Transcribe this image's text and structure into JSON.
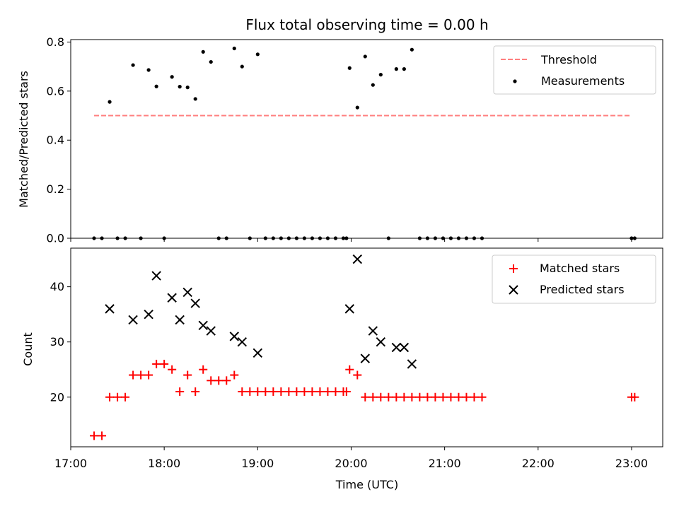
{
  "chart_data": [
    {
      "type": "scatter",
      "title": "Flux total observing time = 0.00 h",
      "xlabel": "",
      "ylabel": "Matched/Predicted stars",
      "xlim": [
        "17:00",
        "23:20"
      ],
      "ylim": [
        0,
        0.81
      ],
      "x_ticks": [
        "17:00",
        "18:00",
        "19:00",
        "20:00",
        "21:00",
        "22:00",
        "23:00"
      ],
      "x_tick_labels_visible": false,
      "y_ticks": [
        "0.0",
        "0.2",
        "0.4",
        "0.6",
        "0.8"
      ],
      "grid": false,
      "legend_position": "top-right",
      "series": [
        {
          "name": "Threshold",
          "kind": "line",
          "style": "dashed",
          "color": "#ff7f7f",
          "x": [
            "17:15",
            "23:00"
          ],
          "y": [
            0.5,
            0.5
          ]
        },
        {
          "name": "Measurements",
          "kind": "scatter",
          "marker": "dot",
          "color": "#000000",
          "x": [
            "17:15",
            "17:20",
            "17:25",
            "17:30",
            "17:35",
            "17:40",
            "17:45",
            "17:50",
            "17:55",
            "18:00",
            "18:05",
            "18:10",
            "18:15",
            "18:20",
            "18:25",
            "18:30",
            "18:35",
            "18:40",
            "18:45",
            "18:50",
            "18:55",
            "19:00",
            "19:05",
            "19:10",
            "19:15",
            "19:20",
            "19:25",
            "19:30",
            "19:35",
            "19:40",
            "19:45",
            "19:50",
            "19:55",
            "19:57",
            "19:59",
            "20:04",
            "20:09",
            "20:14",
            "20:19",
            "20:24",
            "20:29",
            "20:34",
            "20:39",
            "20:44",
            "20:49",
            "20:54",
            "20:59",
            "21:04",
            "21:09",
            "21:14",
            "21:19",
            "21:24",
            "23:00",
            "23:02"
          ],
          "y": [
            0,
            0,
            0.556,
            0,
            0,
            0.706,
            0,
            0.686,
            0.619,
            0,
            0.658,
            0.618,
            0.615,
            0.568,
            0.76,
            0.719,
            0,
            0,
            0.774,
            0.7,
            0,
            0.75,
            0,
            0,
            0,
            0,
            0,
            0,
            0,
            0,
            0,
            0,
            0,
            0,
            0.694,
            0.533,
            0.741,
            0.625,
            0.667,
            0,
            0.69,
            0.69,
            0.769,
            0,
            0,
            0,
            0,
            0,
            0,
            0,
            0,
            0,
            0,
            0
          ]
        }
      ]
    },
    {
      "type": "scatter",
      "title": "",
      "xlabel": "Time (UTC)",
      "ylabel": "Count",
      "xlim": [
        "17:00",
        "23:20"
      ],
      "ylim": [
        11,
        47
      ],
      "x_ticks": [
        "17:00",
        "18:00",
        "19:00",
        "20:00",
        "21:00",
        "22:00",
        "23:00"
      ],
      "y_ticks": [
        "20",
        "30",
        "40"
      ],
      "grid": false,
      "legend_position": "top-right",
      "series": [
        {
          "name": "Matched stars",
          "marker": "plus",
          "color": "#ff0000",
          "x": [
            "17:15",
            "17:20",
            "17:25",
            "17:30",
            "17:35",
            "17:40",
            "17:45",
            "17:50",
            "17:55",
            "18:00",
            "18:05",
            "18:10",
            "18:15",
            "18:20",
            "18:25",
            "18:30",
            "18:35",
            "18:40",
            "18:45",
            "18:50",
            "18:55",
            "19:00",
            "19:05",
            "19:10",
            "19:15",
            "19:20",
            "19:25",
            "19:30",
            "19:35",
            "19:40",
            "19:45",
            "19:50",
            "19:55",
            "19:57",
            "19:59",
            "20:04",
            "20:09",
            "20:14",
            "20:19",
            "20:24",
            "20:29",
            "20:34",
            "20:39",
            "20:44",
            "20:49",
            "20:54",
            "20:59",
            "21:04",
            "21:09",
            "21:14",
            "21:19",
            "21:24",
            "23:00",
            "23:02"
          ],
          "y": [
            13,
            13,
            20,
            20,
            20,
            24,
            24,
            24,
            26,
            26,
            25,
            21,
            24,
            21,
            25,
            23,
            23,
            23,
            24,
            21,
            21,
            21,
            21,
            21,
            21,
            21,
            21,
            21,
            21,
            21,
            21,
            21,
            21,
            21,
            25,
            24,
            20,
            20,
            20,
            20,
            20,
            20,
            20,
            20,
            20,
            20,
            20,
            20,
            20,
            20,
            20,
            20,
            20,
            20
          ]
        },
        {
          "name": "Predicted stars",
          "marker": "x",
          "color": "#000000",
          "x": [
            "17:25",
            "17:40",
            "17:50",
            "17:55",
            "18:05",
            "18:10",
            "18:15",
            "18:20",
            "18:25",
            "18:30",
            "18:45",
            "18:50",
            "19:00",
            "19:59",
            "20:04",
            "20:09",
            "20:14",
            "20:19",
            "20:29",
            "20:34",
            "20:39"
          ],
          "y": [
            36,
            34,
            35,
            42,
            38,
            34,
            39,
            37,
            33,
            32,
            31,
            30,
            28,
            36,
            45,
            27,
            32,
            30,
            29,
            29,
            26
          ]
        }
      ]
    }
  ]
}
